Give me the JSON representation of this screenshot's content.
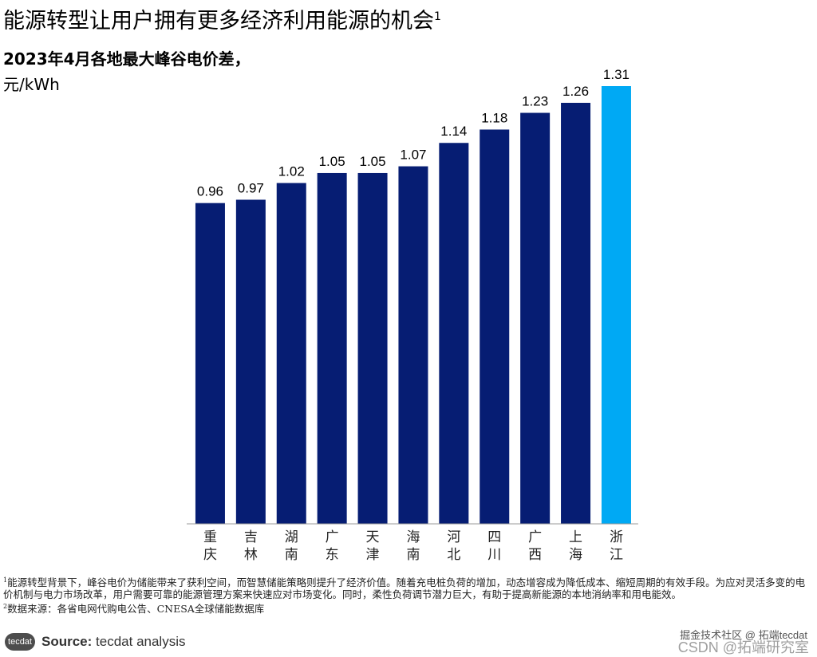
{
  "header": {
    "title": "能源转型让用户拥有更多经济利用能源的机会",
    "title_sup": "1",
    "subtitle": "2023年4月各地最大峰谷电价差，",
    "unit": "元/kWh"
  },
  "chart_data": {
    "type": "bar",
    "title": "2023年4月各地最大峰谷电价差",
    "ylabel": "元/kWh",
    "xlabel": "",
    "ylim": [
      0,
      1.31
    ],
    "categories": [
      "重庆",
      "吉林",
      "湖南",
      "广东",
      "天津",
      "海南",
      "河北",
      "四川",
      "广西",
      "上海",
      "浙江"
    ],
    "values": [
      0.96,
      0.97,
      1.02,
      1.05,
      1.05,
      1.07,
      1.14,
      1.18,
      1.23,
      1.26,
      1.31
    ],
    "value_labels": [
      "0.96",
      "0.97",
      "1.02",
      "1.05",
      "1.05",
      "1.07",
      "1.14",
      "1.18",
      "1.23",
      "1.26",
      "1.31"
    ],
    "highlight_index": 10,
    "colors": {
      "bar": "#061d73",
      "highlight": "#00a9f4",
      "axis": "#9a9a9a"
    }
  },
  "notes": {
    "note1_sup": "1",
    "note1": "能源转型背景下，峰谷电价为储能带来了获利空间，而智慧储能策略则提升了经济价值。随着充电桩负荷的增加，动态增容成为降低成本、缩短周期的有效手段。为应对灵活多变的电价机制与电力市场改革，用户需要可靠的能源管理方案来快速应对市场变化。同时，柔性负荷调节潜力巨大，有助于提高新能源的本地消纳率和用电能效。",
    "note2_sup": "2",
    "note2": "数据来源：各省电网代购电公告、CNESA全球储能数据库"
  },
  "footer": {
    "logo": "tecdat",
    "source_label": "Source:",
    "source_text": "tecdat analysis",
    "watermark": "掘金技术社区 @ 拓端tecdat",
    "watermark2": "CSDN @拓端研究室"
  }
}
